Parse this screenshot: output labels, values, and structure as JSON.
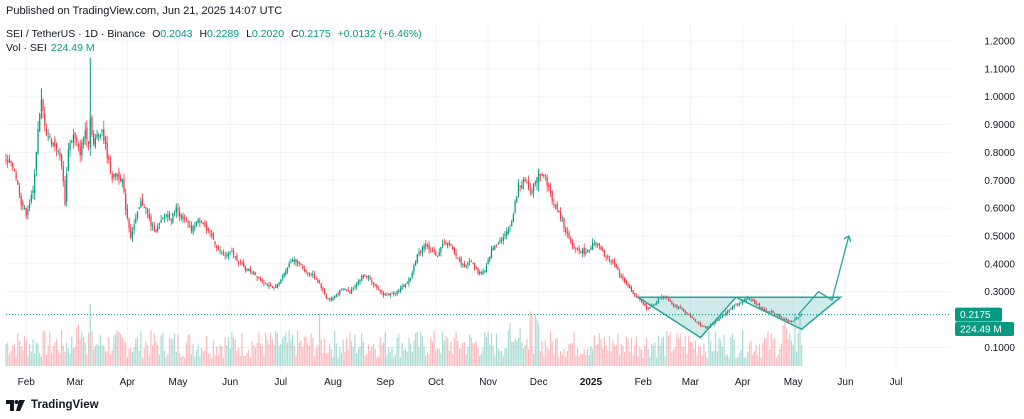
{
  "header": {
    "published": "Published on TradingView.com, Jun 21, 2025 14:07 UTC"
  },
  "legend": {
    "symbol": "SEI / TetherUS · 1D · Binance",
    "open_label": "O",
    "open": "0.2043",
    "high_label": "H",
    "high": "0.2289",
    "low_label": "L",
    "low": "0.2020",
    "close_label": "C",
    "close": "0.2175",
    "change": "+0.0132 (+6.46%)",
    "volume_label": "Vol · SEI",
    "volume": "224.49 M"
  },
  "footer": {
    "brand": "TradingView",
    "logo_icon": "tradingview-logo-icon"
  },
  "colors": {
    "up": "#089981",
    "down": "#f23645",
    "pattern": "#26a69a",
    "pattern_fill": "#26a69a"
  },
  "chart_data": {
    "type": "candlestick",
    "symbol": "SEI / TetherUS",
    "interval": "1D",
    "exchange": "Binance",
    "y_ticks": [
      "1.2000",
      "1.1000",
      "1.0000",
      "0.9000",
      "0.8000",
      "0.7000",
      "0.6000",
      "0.5000",
      "0.4000",
      "0.3000",
      "0.1000"
    ],
    "y_tick_values": [
      1.2,
      1.1,
      1.0,
      0.9,
      0.8,
      0.7,
      0.6,
      0.5,
      0.4,
      0.3,
      0.1
    ],
    "ylim": [
      0.08,
      1.24
    ],
    "x_ticks": [
      "Feb",
      "Mar",
      "Apr",
      "May",
      "Jun",
      "Jul",
      "Aug",
      "Sep",
      "Oct",
      "Nov",
      "Dec",
      "2025",
      "Feb",
      "Mar",
      "Apr",
      "May",
      "Jun",
      "Jul"
    ],
    "x_tick_index": [
      12,
      41,
      72,
      102,
      133,
      163,
      194,
      225,
      255,
      286,
      316,
      347,
      378,
      406,
      437,
      467,
      498,
      528
    ],
    "price_path": [
      [
        0,
        0.77
      ],
      [
        5,
        0.74
      ],
      [
        9,
        0.62
      ],
      [
        12,
        0.58
      ],
      [
        16,
        0.66
      ],
      [
        19,
        0.88
      ],
      [
        21,
        0.98
      ],
      [
        24,
        0.87
      ],
      [
        27,
        0.84
      ],
      [
        30,
        0.82
      ],
      [
        33,
        0.76
      ],
      [
        35,
        0.62
      ],
      [
        37,
        0.82
      ],
      [
        40,
        0.86
      ],
      [
        44,
        0.8
      ],
      [
        47,
        0.88
      ],
      [
        49,
        0.84
      ],
      [
        50,
        0.92
      ],
      [
        52,
        0.83
      ],
      [
        54,
        0.86
      ],
      [
        57,
        0.88
      ],
      [
        60,
        0.79
      ],
      [
        63,
        0.71
      ],
      [
        66,
        0.72
      ],
      [
        69,
        0.7
      ],
      [
        71,
        0.6
      ],
      [
        74,
        0.5
      ],
      [
        77,
        0.56
      ],
      [
        80,
        0.62
      ],
      [
        83,
        0.6
      ],
      [
        86,
        0.54
      ],
      [
        89,
        0.52
      ],
      [
        92,
        0.55
      ],
      [
        95,
        0.58
      ],
      [
        98,
        0.56
      ],
      [
        101,
        0.6
      ],
      [
        104,
        0.57
      ],
      [
        107,
        0.55
      ],
      [
        110,
        0.52
      ],
      [
        113,
        0.55
      ],
      [
        116,
        0.56
      ],
      [
        119,
        0.52
      ],
      [
        122,
        0.5
      ],
      [
        126,
        0.45
      ],
      [
        130,
        0.43
      ],
      [
        134,
        0.44
      ],
      [
        138,
        0.41
      ],
      [
        142,
        0.38
      ],
      [
        146,
        0.37
      ],
      [
        150,
        0.35
      ],
      [
        154,
        0.33
      ],
      [
        158,
        0.31
      ],
      [
        162,
        0.33
      ],
      [
        166,
        0.38
      ],
      [
        170,
        0.42
      ],
      [
        174,
        0.4
      ],
      [
        178,
        0.37
      ],
      [
        182,
        0.36
      ],
      [
        186,
        0.33
      ],
      [
        190,
        0.28
      ],
      [
        193,
        0.27
      ],
      [
        196,
        0.29
      ],
      [
        200,
        0.31
      ],
      [
        204,
        0.3
      ],
      [
        208,
        0.33
      ],
      [
        212,
        0.36
      ],
      [
        216,
        0.35
      ],
      [
        220,
        0.31
      ],
      [
        224,
        0.29
      ],
      [
        228,
        0.29
      ],
      [
        232,
        0.3
      ],
      [
        236,
        0.32
      ],
      [
        240,
        0.35
      ],
      [
        244,
        0.43
      ],
      [
        248,
        0.47
      ],
      [
        252,
        0.45
      ],
      [
        256,
        0.43
      ],
      [
        260,
        0.48
      ],
      [
        264,
        0.46
      ],
      [
        268,
        0.42
      ],
      [
        272,
        0.39
      ],
      [
        276,
        0.41
      ],
      [
        280,
        0.37
      ],
      [
        284,
        0.37
      ],
      [
        288,
        0.45
      ],
      [
        292,
        0.48
      ],
      [
        296,
        0.5
      ],
      [
        300,
        0.55
      ],
      [
        304,
        0.68
      ],
      [
        308,
        0.7
      ],
      [
        312,
        0.66
      ],
      [
        316,
        0.73
      ],
      [
        320,
        0.71
      ],
      [
        324,
        0.63
      ],
      [
        328,
        0.58
      ],
      [
        332,
        0.52
      ],
      [
        336,
        0.46
      ],
      [
        340,
        0.45
      ],
      [
        344,
        0.44
      ],
      [
        348,
        0.47
      ],
      [
        352,
        0.46
      ],
      [
        356,
        0.42
      ],
      [
        360,
        0.41
      ],
      [
        364,
        0.36
      ],
      [
        368,
        0.33
      ],
      [
        372,
        0.29
      ],
      [
        376,
        0.27
      ],
      [
        380,
        0.24
      ],
      [
        384,
        0.25
      ],
      [
        388,
        0.28
      ],
      [
        392,
        0.28
      ],
      [
        396,
        0.25
      ],
      [
        400,
        0.24
      ],
      [
        404,
        0.22
      ],
      [
        408,
        0.2
      ],
      [
        412,
        0.18
      ],
      [
        416,
        0.17
      ],
      [
        420,
        0.19
      ],
      [
        424,
        0.21
      ],
      [
        428,
        0.23
      ],
      [
        432,
        0.25
      ],
      [
        436,
        0.26
      ],
      [
        440,
        0.28
      ],
      [
        444,
        0.26
      ],
      [
        448,
        0.24
      ],
      [
        452,
        0.23
      ],
      [
        456,
        0.22
      ],
      [
        460,
        0.21
      ],
      [
        464,
        0.19
      ],
      [
        468,
        0.2
      ],
      [
        472,
        0.2175
      ]
    ],
    "projection_line": [
      [
        470,
        0.2175
      ],
      [
        482,
        0.3
      ],
      [
        490,
        0.27
      ],
      [
        500,
        0.5
      ]
    ],
    "pattern": {
      "type": "inverse-head-and-shoulders",
      "neckline": [
        [
          380,
          0.28
        ],
        [
          495,
          0.28
        ]
      ],
      "head_low": [
        [
          375,
          0.28
        ],
        [
          412,
          0.135
        ],
        [
          433,
          0.28
        ]
      ],
      "right_shoulder": [
        [
          433,
          0.28
        ],
        [
          472,
          0.165
        ],
        [
          495,
          0.28
        ]
      ]
    },
    "last_price": 0.2175,
    "last_price_label": "0.2175",
    "volume_label": "224.49 M"
  }
}
